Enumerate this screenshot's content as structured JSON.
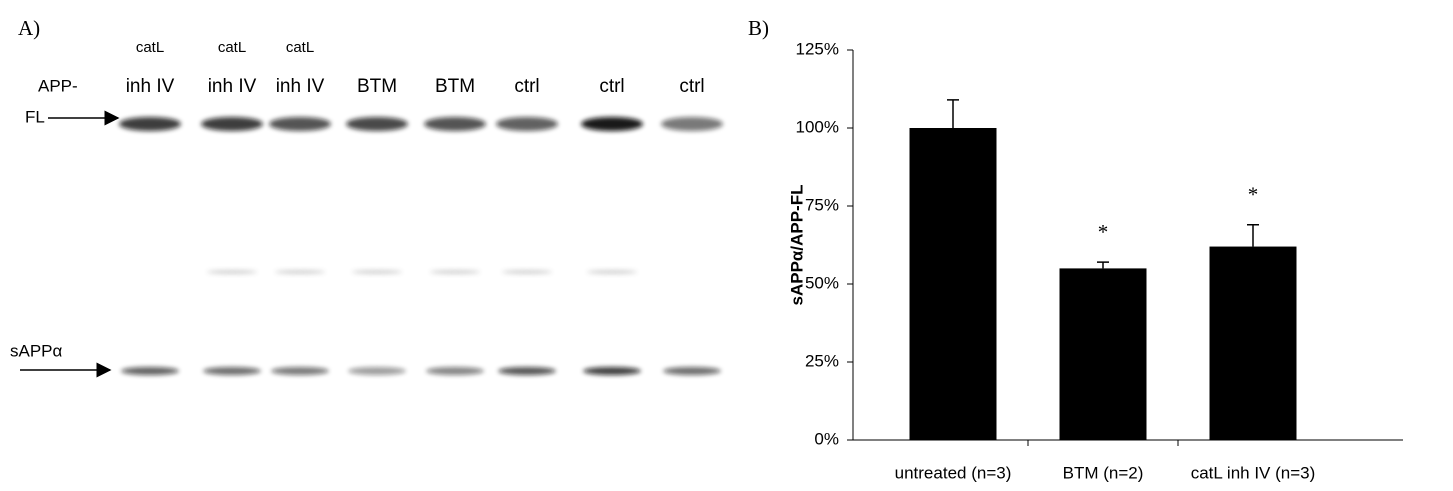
{
  "panel_a": {
    "label": "A)",
    "lanes": [
      {
        "top": "catL",
        "bottom": "inh IV"
      },
      {
        "top": "catL",
        "bottom": "inh IV"
      },
      {
        "top": "catL",
        "bottom": "inh IV"
      },
      {
        "bottom": "BTM"
      },
      {
        "bottom": "BTM"
      },
      {
        "bottom": "ctrl"
      },
      {
        "bottom": "ctrl"
      },
      {
        "bottom": "ctrl"
      }
    ],
    "upper_band": [
      "APP-",
      "FL"
    ],
    "lower_band": "sAPPα"
  },
  "chart_data": {
    "type": "bar",
    "panel_label": "B)",
    "y_label": "sAPPα/APP-FL",
    "categories": [
      "untreated (n=3)",
      "BTM (n=2)",
      "catL inh IV (n=3)"
    ],
    "values": [
      100,
      55,
      62
    ],
    "errors": [
      9,
      2,
      7
    ],
    "annotations": [
      null,
      "*",
      "*"
    ],
    "color": "#000000",
    "ylim": [
      0,
      125
    ],
    "yticks": [
      {
        "value": 0,
        "label": "0%"
      },
      {
        "value": 25,
        "label": "25%"
      },
      {
        "value": 50,
        "label": "50%"
      },
      {
        "value": 75,
        "label": "75%"
      },
      {
        "value": 100,
        "label": "100%"
      },
      {
        "value": 125,
        "label": "125%"
      }
    ]
  }
}
